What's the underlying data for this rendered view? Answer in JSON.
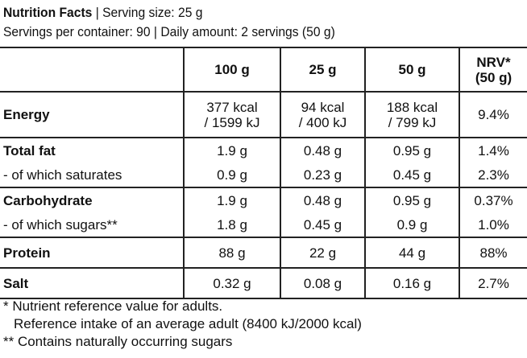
{
  "header": {
    "title": "Nutrition Facts",
    "serving": "| Serving size: 25 g",
    "line2": "Servings per container: 90 | Daily amount: 2 servings (50 g)"
  },
  "table": {
    "columns": [
      [
        "100 g"
      ],
      [
        "25 g"
      ],
      [
        "50 g"
      ],
      [
        "NRV*",
        "(50 g)"
      ]
    ],
    "groups": [
      [
        {
          "label": "Energy",
          "values": [
            [
              "377 kcal",
              "/ 1599 kJ"
            ],
            [
              "94 kcal",
              "/ 400 kJ"
            ],
            [
              "188 kcal",
              "/ 799 kJ"
            ],
            [
              "9.4%"
            ]
          ]
        }
      ],
      [
        {
          "label": "Total fat",
          "values": [
            [
              "1.9 g"
            ],
            [
              "0.48 g"
            ],
            [
              "0.95 g"
            ],
            [
              "1.4%"
            ]
          ]
        },
        {
          "label": "- of which saturates",
          "values": [
            [
              "0.9 g"
            ],
            [
              "0.23 g"
            ],
            [
              "0.45 g"
            ],
            [
              "2.3%"
            ]
          ]
        }
      ],
      [
        {
          "label": "Carbohydrate",
          "values": [
            [
              "1.9 g"
            ],
            [
              "0.48 g"
            ],
            [
              "0.95 g"
            ],
            [
              "0.37%"
            ]
          ]
        },
        {
          "label": "- of which sugars**",
          "values": [
            [
              "1.8 g"
            ],
            [
              "0.45 g"
            ],
            [
              "0.9 g"
            ],
            [
              "1.0%"
            ]
          ]
        }
      ],
      [
        {
          "label": "Protein",
          "values": [
            [
              "88 g"
            ],
            [
              "22 g"
            ],
            [
              "44 g"
            ],
            [
              "88%"
            ]
          ]
        }
      ],
      [
        {
          "label": "Salt",
          "values": [
            [
              "0.32 g"
            ],
            [
              "0.08 g"
            ],
            [
              "0.16 g"
            ],
            [
              "2.7%"
            ]
          ]
        }
      ]
    ]
  },
  "footnotes": [
    "* Nutrient reference value for adults.",
    "Reference intake of an average adult (8400 kJ/2000 kcal)",
    "** Contains naturally occurring sugars"
  ]
}
